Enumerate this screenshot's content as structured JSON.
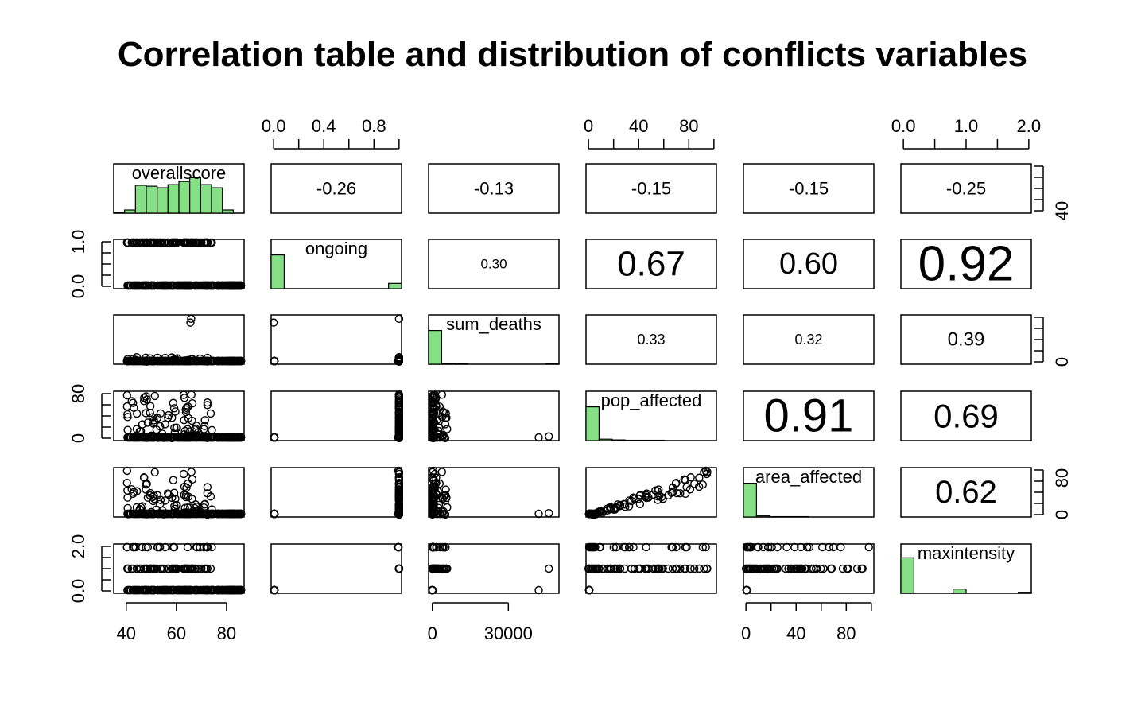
{
  "chart_data": {
    "type": "scatter-matrix",
    "title": "Correlation table and distribution of conflicts variables",
    "variables": [
      {
        "name": "overallscore",
        "range": [
          35,
          87
        ],
        "ticks": [
          40,
          60,
          80
        ],
        "tick_labels": [
          "40",
          "60",
          "80"
        ],
        "hist": [
          0.02,
          0.1,
          0.88,
          0.85,
          0.8,
          0.9,
          1.0,
          1.12,
          0.9,
          0.8,
          0.1,
          0.0
        ]
      },
      {
        "name": "ongoing",
        "range": [
          -0.02,
          1.02
        ],
        "ticks": [
          0.0,
          0.4,
          0.8
        ],
        "tick_labels": [
          "0.0",
          "0.4",
          "0.8"
        ],
        "ticks_minor": [
          0.0,
          0.2,
          0.4,
          0.6,
          0.8,
          1.0
        ],
        "hist": [
          0.95,
          0,
          0,
          0,
          0,
          0,
          0,
          0,
          0,
          0.15
        ],
        "axis_left_labels": [
          "0.0",
          "1.0"
        ],
        "axis_left_ticks": [
          0.0,
          0.5,
          1.0
        ]
      },
      {
        "name": "sum_deaths",
        "range": [
          -1500,
          50000
        ],
        "ticks": [
          0,
          30000
        ],
        "tick_labels": [
          "0",
          "30000"
        ],
        "hist": [
          0.95,
          0.02,
          0.01,
          0,
          0,
          0,
          0,
          0,
          0,
          0.01
        ],
        "axis_right_label": "0",
        "axis_right_ticks": [
          0,
          10000,
          20000,
          30000,
          40000,
          50000
        ]
      },
      {
        "name": "pop_affected",
        "range": [
          -2,
          102
        ],
        "ticks": [
          0,
          40,
          80
        ],
        "tick_labels": [
          "0",
          "40",
          "80"
        ],
        "ticks_minor": [
          0,
          20,
          40,
          60,
          80,
          100
        ],
        "hist": [
          0.95,
          0.04,
          0.02,
          0.01,
          0.01,
          0.01,
          0,
          0,
          0,
          0
        ]
      },
      {
        "name": "area_affected",
        "range": [
          -2,
          102
        ],
        "ticks": [
          0,
          40,
          80
        ],
        "tick_labels": [
          "0",
          "40",
          "80"
        ],
        "ticks_minor": [
          0,
          20,
          40,
          60,
          80,
          100
        ],
        "hist": [
          0.95,
          0.03,
          0.01,
          0.01,
          0.01,
          0,
          0,
          0,
          0,
          0
        ],
        "axis_right_labels": [
          "0",
          "80"
        ],
        "axis_right_ticks": [
          0,
          40,
          80
        ]
      },
      {
        "name": "maxintensity",
        "range": [
          -0.04,
          2.04
        ],
        "ticks": [
          0.0,
          1.0,
          2.0
        ],
        "tick_labels": [
          "0.0",
          "1.0",
          "2.0"
        ],
        "ticks_minor": [
          0.0,
          0.5,
          1.0,
          1.5,
          2.0
        ],
        "hist": [
          1.0,
          0,
          0,
          0,
          0.12,
          0,
          0,
          0,
          0,
          0.03
        ]
      }
    ],
    "correlations": [
      {
        "row": 0,
        "col": 1,
        "value": "-0.26",
        "size": 22
      },
      {
        "row": 0,
        "col": 2,
        "value": "-0.13",
        "size": 22
      },
      {
        "row": 0,
        "col": 3,
        "value": "-0.15",
        "size": 22
      },
      {
        "row": 0,
        "col": 4,
        "value": "-0.15",
        "size": 22
      },
      {
        "row": 0,
        "col": 5,
        "value": "-0.25",
        "size": 22
      },
      {
        "row": 1,
        "col": 2,
        "value": "0.30",
        "size": 17
      },
      {
        "row": 1,
        "col": 3,
        "value": "0.67",
        "size": 44
      },
      {
        "row": 1,
        "col": 4,
        "value": "0.60",
        "size": 38
      },
      {
        "row": 1,
        "col": 5,
        "value": "0.92",
        "size": 62
      },
      {
        "row": 2,
        "col": 3,
        "value": "0.33",
        "size": 18
      },
      {
        "row": 2,
        "col": 4,
        "value": "0.32",
        "size": 18
      },
      {
        "row": 2,
        "col": 5,
        "value": "0.39",
        "size": 24
      },
      {
        "row": 3,
        "col": 4,
        "value": "0.91",
        "size": 58
      },
      {
        "row": 3,
        "col": 5,
        "value": "0.69",
        "size": 42
      },
      {
        "row": 4,
        "col": 5,
        "value": "0.62",
        "size": 40
      }
    ],
    "top_axis_cols": [
      1,
      3,
      5
    ],
    "bottom_axis_cols": [
      0,
      2,
      4
    ],
    "left_axis_rows": [
      1,
      3,
      5
    ],
    "right_axis_rows": [
      0,
      2,
      4
    ],
    "right_axis_labels": {
      "0": [
        "40"
      ],
      "2": [
        "0"
      ],
      "4": [
        "0",
        "80"
      ]
    },
    "left_axis_labels": {
      "1": [
        "0.0",
        "1.0"
      ],
      "3": [
        "0",
        "80"
      ],
      "5": [
        "0.0",
        "2.0"
      ]
    },
    "hist_color": "#85e085",
    "point_style": "open-circle"
  }
}
